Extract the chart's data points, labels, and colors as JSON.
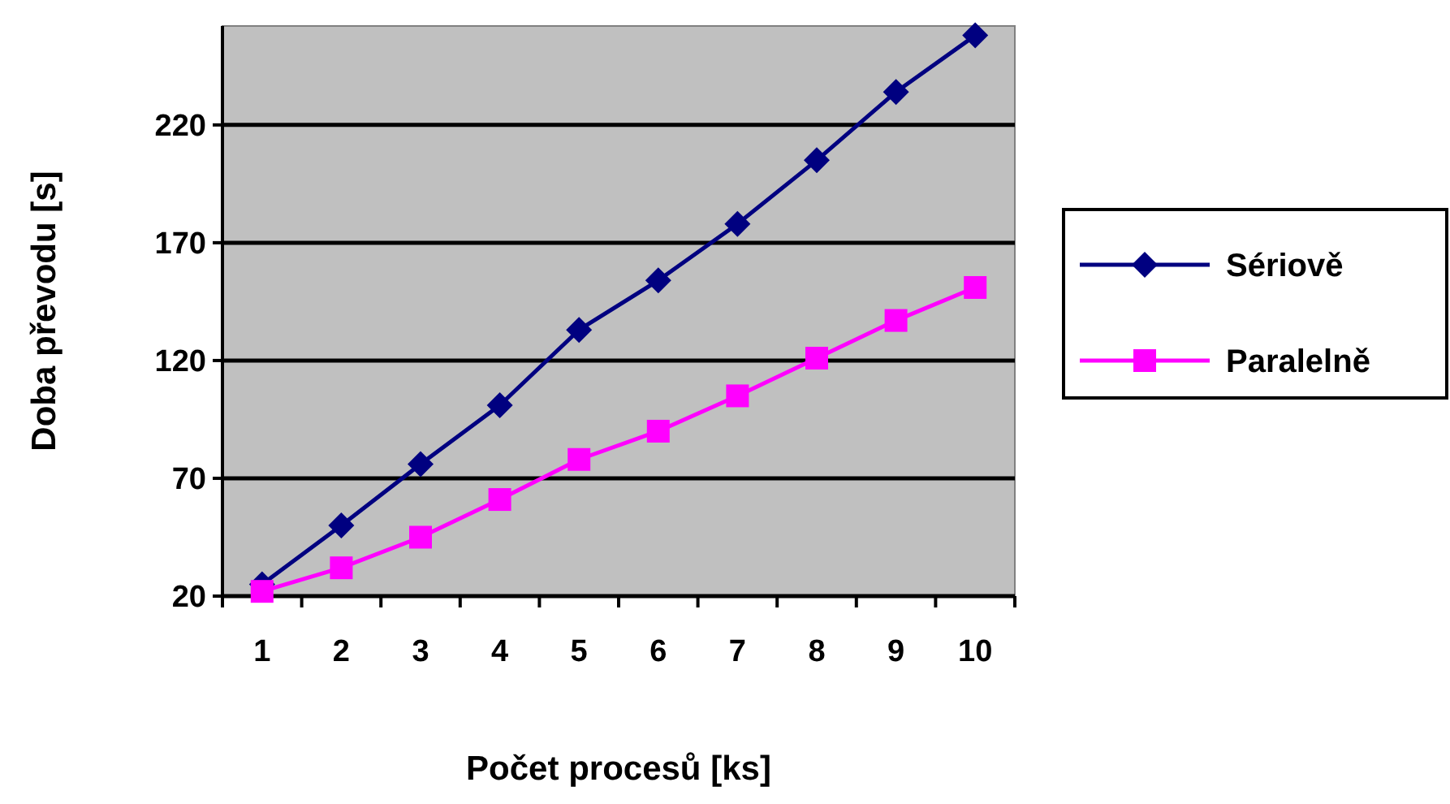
{
  "chart_data": {
    "type": "line",
    "xlabel": "Počet procesů [ks]",
    "ylabel": "Doba převodu [s]",
    "categories": [
      "1",
      "2",
      "3",
      "4",
      "5",
      "6",
      "7",
      "8",
      "9",
      "10"
    ],
    "ylim": [
      20,
      262
    ],
    "yticks": [
      20,
      70,
      120,
      170,
      220
    ],
    "grid": "y",
    "legend": "right",
    "series": [
      {
        "name": "Sériově",
        "color": "#000080",
        "marker": "diamond",
        "values": [
          25,
          50,
          76,
          101,
          133,
          154,
          178,
          205,
          234,
          258
        ]
      },
      {
        "name": "Paralelně",
        "color": "#ff00ff",
        "marker": "square",
        "values": [
          22,
          32,
          45,
          61,
          78,
          90,
          105,
          121,
          137,
          151
        ]
      }
    ]
  }
}
